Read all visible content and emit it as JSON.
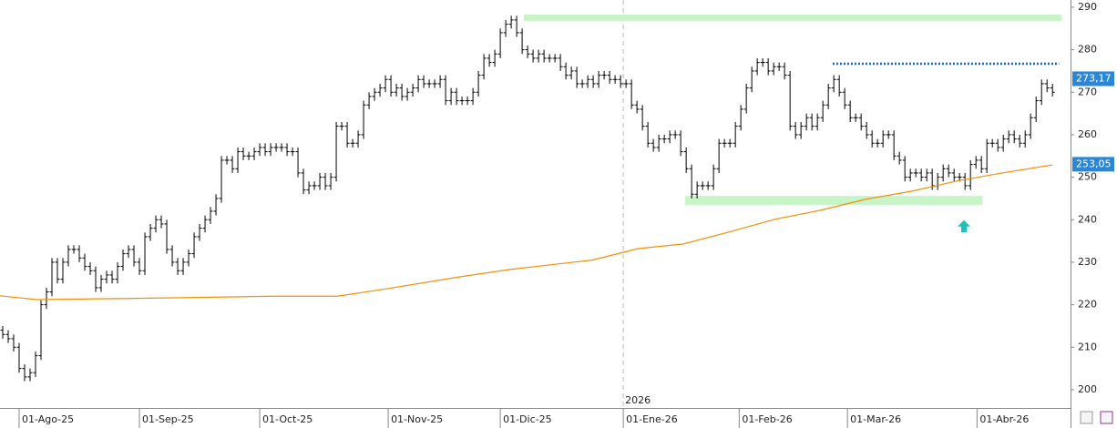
{
  "chart_data": {
    "type": "ohlc",
    "xlim": [
      -0.5,
      195.3
    ],
    "ylim": [
      195.7,
      291.7
    ],
    "yticks": [
      200,
      210,
      220,
      230,
      240,
      250,
      260,
      270,
      280,
      290
    ],
    "xticks": [
      {
        "value": 3,
        "label": "01-Ago-25"
      },
      {
        "value": 25,
        "label": "01-Sep-25"
      },
      {
        "value": 47,
        "label": "01-Oct-25"
      },
      {
        "value": 70.5,
        "label": "01-Nov-25"
      },
      {
        "value": 91,
        "label": "01-Dic-25"
      },
      {
        "value": 113.5,
        "label": "01-Ene-26"
      },
      {
        "value": 134.7,
        "label": "01-Feb-26"
      },
      {
        "value": 154.5,
        "label": "01-Mar-26"
      },
      {
        "value": 178.2,
        "label": "01-Abr-26"
      }
    ],
    "year_marker": {
      "value": 113.5,
      "label": "2026"
    },
    "color": "#000000",
    "open": [
      214,
      213,
      212,
      210,
      205,
      203,
      204,
      208,
      220,
      223,
      230,
      226,
      230,
      233,
      233,
      231,
      229,
      228,
      224,
      226,
      227,
      226,
      229,
      232,
      233,
      230,
      228,
      236,
      238,
      240,
      239,
      233,
      230,
      228,
      230,
      232,
      236,
      238,
      240,
      242,
      245,
      254,
      254,
      252,
      256,
      255,
      255,
      256,
      257,
      256,
      257,
      257,
      257,
      256,
      256,
      251,
      247,
      248,
      248,
      250,
      248,
      250,
      262,
      262,
      258,
      258,
      260,
      267,
      269,
      270,
      271,
      273,
      270,
      271,
      269,
      270,
      271,
      273,
      272,
      272,
      272,
      273,
      268,
      270,
      268,
      268,
      268,
      270,
      274,
      278,
      277,
      279,
      284,
      286,
      287,
      284,
      280,
      279,
      278,
      279,
      278,
      278,
      278,
      276,
      274,
      275,
      272,
      272,
      273,
      272,
      274,
      274,
      273,
      273,
      272,
      272,
      267,
      266,
      262,
      258,
      257,
      259,
      259,
      260,
      260,
      256,
      252,
      246,
      248,
      248,
      248,
      252,
      258,
      258,
      258,
      262,
      266,
      271,
      275,
      277,
      277,
      275,
      276,
      276,
      274,
      262,
      260,
      262,
      264,
      262,
      264,
      267,
      271,
      273,
      270,
      267,
      264,
      264,
      262,
      260,
      258,
      258,
      260,
      260,
      255,
      254,
      250,
      251,
      251,
      250,
      251,
      248,
      250,
      252,
      251,
      250,
      250,
      248,
      253,
      254,
      252,
      258,
      258,
      257,
      259,
      260,
      259,
      258,
      260,
      264,
      268,
      272,
      271
    ],
    "high": [
      215,
      214,
      213,
      211,
      206,
      205,
      209,
      221,
      224,
      231,
      231,
      231,
      234,
      234,
      234,
      232,
      230,
      229,
      227,
      228,
      228,
      230,
      233,
      234,
      234,
      231,
      237,
      239,
      241,
      241,
      240,
      234,
      231,
      231,
      233,
      237,
      239,
      241,
      243,
      246,
      255,
      255,
      255,
      257,
      257,
      256,
      257,
      258,
      258,
      258,
      258,
      258,
      258,
      257,
      257,
      252,
      249,
      249,
      251,
      251,
      251,
      263,
      263,
      263,
      259,
      261,
      268,
      270,
      271,
      272,
      274,
      274,
      272,
      272,
      271,
      272,
      274,
      274,
      273,
      273,
      274,
      274,
      271,
      271,
      269,
      269,
      271,
      275,
      279,
      279,
      280,
      285,
      287,
      288,
      288,
      285,
      281,
      280,
      280,
      280,
      279,
      279,
      279,
      277,
      276,
      276,
      273,
      274,
      274,
      275,
      275,
      275,
      274,
      274,
      273,
      273,
      268,
      267,
      263,
      259,
      260,
      260,
      261,
      261,
      261,
      257,
      253,
      249,
      249,
      249,
      253,
      259,
      259,
      259,
      263,
      267,
      272,
      276,
      278,
      278,
      278,
      277,
      277,
      277,
      275,
      263,
      263,
      265,
      265,
      265,
      268,
      272,
      274,
      274,
      271,
      268,
      265,
      265,
      263,
      261,
      259,
      261,
      261,
      261,
      256,
      255,
      252,
      252,
      252,
      252,
      252,
      251,
      253,
      253,
      252,
      251,
      251,
      254,
      255,
      255,
      259,
      259,
      259,
      260,
      261,
      261,
      260,
      261,
      265,
      269,
      273,
      273,
      272
    ],
    "low": [
      212,
      211,
      209,
      204,
      202,
      202,
      203,
      207,
      219,
      222,
      225,
      225,
      229,
      232,
      230,
      228,
      227,
      223,
      223,
      225,
      225,
      225,
      228,
      231,
      229,
      227,
      227,
      235,
      237,
      238,
      232,
      229,
      227,
      227,
      229,
      231,
      235,
      237,
      239,
      241,
      244,
      253,
      251,
      251,
      254,
      254,
      254,
      255,
      255,
      255,
      256,
      256,
      255,
      255,
      250,
      246,
      246,
      247,
      247,
      247,
      247,
      249,
      261,
      257,
      257,
      257,
      259,
      266,
      268,
      269,
      270,
      269,
      269,
      268,
      268,
      269,
      270,
      271,
      271,
      271,
      271,
      267,
      267,
      267,
      267,
      267,
      267,
      269,
      273,
      276,
      276,
      278,
      283,
      285,
      283,
      279,
      278,
      277,
      277,
      277,
      277,
      277,
      275,
      273,
      273,
      271,
      271,
      271,
      271,
      271,
      273,
      272,
      272,
      271,
      271,
      266,
      265,
      261,
      257,
      256,
      256,
      258,
      258,
      259,
      255,
      251,
      245,
      245,
      247,
      247,
      247,
      251,
      257,
      257,
      257,
      261,
      265,
      270,
      274,
      276,
      274,
      274,
      275,
      273,
      261,
      259,
      259,
      261,
      261,
      261,
      263,
      266,
      270,
      269,
      266,
      263,
      263,
      261,
      259,
      257,
      257,
      257,
      259,
      254,
      253,
      249,
      249,
      250,
      249,
      249,
      247,
      247,
      249,
      250,
      249,
      249,
      247,
      247,
      252,
      251,
      251,
      257,
      256,
      256,
      258,
      258,
      257,
      257,
      259,
      263,
      267,
      270,
      269
    ],
    "close": [
      213,
      212,
      210,
      205,
      203,
      204,
      208,
      220,
      223,
      230,
      226,
      230,
      233,
      233,
      231,
      229,
      228,
      224,
      226,
      227,
      226,
      229,
      232,
      233,
      230,
      228,
      236,
      238,
      240,
      239,
      233,
      230,
      228,
      230,
      232,
      236,
      238,
      240,
      242,
      245,
      254,
      254,
      252,
      256,
      255,
      255,
      256,
      257,
      256,
      257,
      257,
      257,
      256,
      256,
      251,
      247,
      248,
      248,
      250,
      248,
      250,
      262,
      262,
      258,
      258,
      260,
      267,
      269,
      270,
      271,
      273,
      270,
      271,
      269,
      270,
      271,
      273,
      272,
      272,
      272,
      273,
      268,
      270,
      268,
      268,
      268,
      270,
      274,
      278,
      277,
      279,
      284,
      286,
      287,
      284,
      280,
      279,
      278,
      279,
      278,
      278,
      278,
      276,
      274,
      275,
      272,
      272,
      273,
      272,
      274,
      274,
      273,
      273,
      272,
      272,
      267,
      266,
      262,
      258,
      257,
      259,
      259,
      260,
      260,
      256,
      252,
      246,
      248,
      248,
      248,
      252,
      258,
      258,
      258,
      262,
      266,
      271,
      275,
      277,
      277,
      275,
      276,
      276,
      274,
      262,
      260,
      262,
      264,
      262,
      264,
      267,
      271,
      273,
      270,
      267,
      264,
      264,
      262,
      260,
      258,
      258,
      260,
      260,
      255,
      254,
      250,
      251,
      251,
      250,
      251,
      248,
      250,
      252,
      251,
      250,
      250,
      248,
      253,
      254,
      252,
      258,
      258,
      257,
      259,
      260,
      259,
      258,
      260,
      264,
      268,
      272,
      271,
      270
    ],
    "ma": {
      "color": "#f0900a",
      "x": [
        -0.5,
        6.2,
        24.5,
        49.5,
        61.2,
        69.5,
        82.8,
        92.8,
        107.8,
        116.2,
        124.5,
        132.8,
        141.2,
        149.5,
        157.8,
        166.2,
        174.5,
        182.8,
        192
      ],
      "values": [
        222.1,
        221.2,
        221.5,
        222,
        222,
        223.6,
        226.4,
        228.3,
        230.5,
        233.2,
        234.3,
        237.1,
        240.1,
        242.2,
        244.8,
        246.7,
        249.1,
        251,
        252.9
      ]
    },
    "bands": [
      {
        "x": [
          95.3,
          193.7
        ],
        "y": [
          286.8,
          288.3
        ],
        "color": "#c8f5c8"
      },
      {
        "x": [
          124.8,
          179.2
        ],
        "y": [
          243.5,
          245.6
        ],
        "color": "#c8f5c8"
      }
    ],
    "levels": [
      {
        "x": [
          151.8,
          193.2
        ],
        "value": 276.7,
        "color": "#1f5fb0"
      }
    ],
    "arrow": {
      "x": 175.8,
      "y": [
        237,
        239.9
      ],
      "color": "#20c0b8"
    },
    "price_tags": [
      {
        "value": 273.17,
        "label": "273,17",
        "color": "#2a86d6"
      },
      {
        "value": 253.05,
        "label": "253,05",
        "color": "#2a86d6"
      }
    ]
  }
}
